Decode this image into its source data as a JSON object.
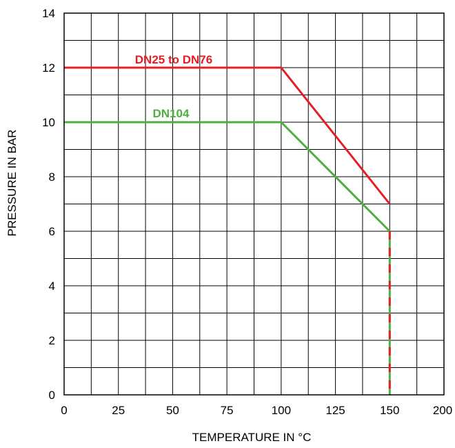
{
  "chart_data": {
    "type": "line",
    "title": "",
    "xlabel": "TEMPERATURE IN °C",
    "ylabel": "PRESSURE IN BAR",
    "xlim": [
      0,
      175
    ],
    "ylim": [
      0,
      14
    ],
    "x_ticks": [
      0,
      25,
      50,
      75,
      100,
      125,
      150,
      200
    ],
    "y_ticks": [
      0,
      2,
      4,
      6,
      8,
      10,
      12,
      14
    ],
    "grid": true,
    "series": [
      {
        "name": "DN25 to DN76",
        "color": "#e31e24",
        "points": [
          [
            0,
            12
          ],
          [
            100,
            12
          ],
          [
            150,
            7
          ],
          [
            150,
            0
          ]
        ]
      },
      {
        "name": "DN104",
        "color": "#4caf3e",
        "points": [
          [
            0,
            10
          ],
          [
            100,
            10
          ],
          [
            150,
            6
          ],
          [
            150,
            0
          ]
        ]
      }
    ],
    "annotations": [
      {
        "text": "DN25 to DN76",
        "series": 0
      },
      {
        "text": "DN104",
        "series": 1
      }
    ]
  }
}
